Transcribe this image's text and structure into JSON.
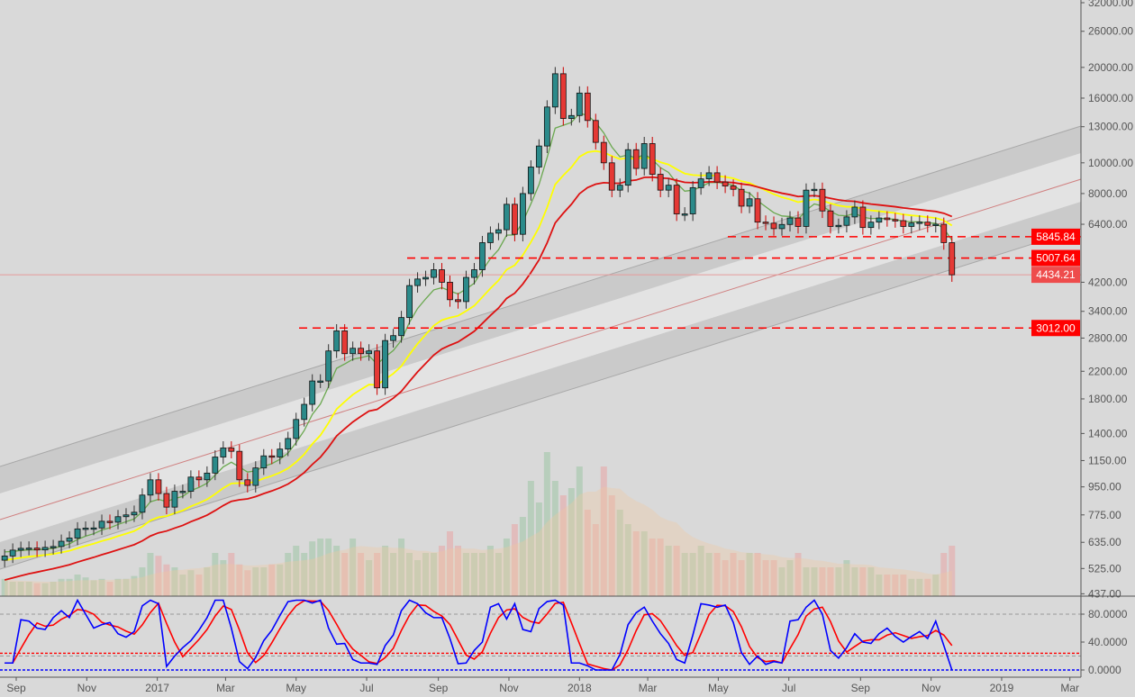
{
  "chart_data": {
    "type": "candlestick",
    "y_scale": "log",
    "ylim": [
      437,
      32000
    ],
    "price_ticks": [
      "32000.00",
      "26000.00",
      "20000.00",
      "16000.00",
      "13000.00",
      "10000.00",
      "8000.00",
      "6400.00",
      "4200.00",
      "3400.00",
      "2800.00",
      "2200.00",
      "1800.00",
      "1400.00",
      "1150.00",
      "950.00",
      "775.00",
      "635.00",
      "525.00",
      "437.00"
    ],
    "time_ticks": [
      {
        "label": "Sep",
        "date": "2016-09-01"
      },
      {
        "label": "Nov",
        "date": "2016-11-01"
      },
      {
        "label": "2017",
        "date": "2017-01-01"
      },
      {
        "label": "Mar",
        "date": "2017-03-01"
      },
      {
        "label": "May",
        "date": "2017-05-01"
      },
      {
        "label": "Jul",
        "date": "2017-07-01"
      },
      {
        "label": "Sep",
        "date": "2017-09-01"
      },
      {
        "label": "Nov",
        "date": "2017-11-01"
      },
      {
        "label": "2018",
        "date": "2018-01-01"
      },
      {
        "label": "Mar",
        "date": "2018-03-01"
      },
      {
        "label": "May",
        "date": "2018-05-01"
      },
      {
        "label": "Jul",
        "date": "2018-07-01"
      },
      {
        "label": "Sep",
        "date": "2018-09-01"
      },
      {
        "label": "Nov",
        "date": "2018-11-01"
      },
      {
        "label": "2019",
        "date": "2019-01-01"
      },
      {
        "label": "Mar",
        "date": "2019-03-01"
      }
    ],
    "first_candle_date": "2016-08-22",
    "candle_interval_days": 7,
    "close": [
      575,
      600,
      608,
      609,
      601,
      612,
      616,
      640,
      655,
      700,
      704,
      705,
      740,
      735,
      765,
      775,
      790,
      895,
      1000,
      905,
      820,
      920,
      920,
      1020,
      1000,
      1050,
      1180,
      1260,
      1230,
      1000,
      960,
      1090,
      1190,
      1180,
      1250,
      1350,
      1550,
      1730,
      2050,
      2050,
      2550,
      2950,
      2500,
      2600,
      2500,
      2550,
      1950,
      2750,
      2850,
      3250,
      4100,
      4300,
      4350,
      4600,
      4200,
      3700,
      3650,
      4350,
      4600,
      5600,
      6000,
      6150,
      7400,
      5950,
      8000,
      9700,
      11300,
      15000,
      19100,
      13800,
      14100,
      16600,
      13600,
      11600,
      10000,
      8200,
      8500,
      11000,
      9600,
      11500,
      9200,
      8200,
      8500,
      6900,
      6900,
      8350,
      8900,
      9300,
      8700,
      8450,
      8250,
      7300,
      7700,
      6500,
      6450,
      6200,
      6390,
      6700,
      6300,
      8200,
      8250,
      7050,
      6300,
      6350,
      6750,
      7250,
      6250,
      6500,
      6700,
      6620,
      6570,
      6300,
      6460,
      6500,
      6350,
      6400,
      5600,
      4434.21
    ],
    "volume_relative": [
      0.12,
      0.1,
      0.1,
      0.1,
      0.09,
      0.09,
      0.1,
      0.12,
      0.12,
      0.15,
      0.13,
      0.11,
      0.12,
      0.1,
      0.12,
      0.12,
      0.14,
      0.2,
      0.3,
      0.28,
      0.22,
      0.2,
      0.15,
      0.18,
      0.15,
      0.2,
      0.3,
      0.25,
      0.3,
      0.22,
      0.18,
      0.2,
      0.2,
      0.22,
      0.22,
      0.3,
      0.35,
      0.3,
      0.38,
      0.4,
      0.4,
      0.35,
      0.3,
      0.4,
      0.3,
      0.25,
      0.3,
      0.35,
      0.3,
      0.4,
      0.3,
      0.25,
      0.3,
      0.3,
      0.35,
      0.45,
      0.35,
      0.3,
      0.3,
      0.3,
      0.35,
      0.3,
      0.4,
      0.5,
      0.55,
      0.8,
      0.65,
      1.0,
      0.8,
      0.7,
      0.75,
      0.9,
      0.6,
      0.5,
      0.9,
      0.7,
      0.6,
      0.5,
      0.45,
      0.45,
      0.4,
      0.4,
      0.35,
      0.35,
      0.3,
      0.3,
      0.35,
      0.3,
      0.3,
      0.25,
      0.3,
      0.25,
      0.3,
      0.3,
      0.25,
      0.25,
      0.2,
      0.25,
      0.3,
      0.2,
      0.2,
      0.2,
      0.2,
      0.2,
      0.25,
      0.2,
      0.2,
      0.2,
      0.15,
      0.15,
      0.15,
      0.15,
      0.12,
      0.12,
      0.12,
      0.15,
      0.3,
      0.35
    ],
    "horizontal_levels": [
      {
        "label": "5845.84",
        "value": 5845.84,
        "style": "dashed"
      },
      {
        "label": "5007.64",
        "value": 5007.64,
        "style": "dashed"
      },
      {
        "label": "3012.00",
        "value": 3012.0,
        "style": "dashed"
      },
      {
        "label": "4434.21",
        "value": 4434.21,
        "style": "last-price"
      }
    ],
    "moving_averages": [
      {
        "color": "#6aa84f"
      },
      {
        "color": "#ffff00"
      },
      {
        "color": "#dd1111"
      }
    ],
    "oscillator": {
      "type": "stoch-rsi",
      "ticks": [
        "80.0000",
        "40.0000",
        "0.0000"
      ],
      "ylim": [
        0,
        100
      ],
      "levels": [
        80,
        20
      ],
      "k": [
        10,
        10,
        72,
        70,
        60,
        58,
        75,
        85,
        75,
        100,
        80,
        60,
        65,
        68,
        52,
        47,
        55,
        92,
        100,
        95,
        5,
        20,
        32,
        42,
        57,
        75,
        100,
        100,
        60,
        12,
        2,
        18,
        42,
        57,
        78,
        98,
        100,
        100,
        96,
        100,
        60,
        37,
        38,
        15,
        10,
        10,
        8,
        35,
        50,
        85,
        100,
        95,
        82,
        75,
        75,
        45,
        9,
        10,
        28,
        40,
        90,
        95,
        73,
        95,
        58,
        55,
        88,
        98,
        100,
        93,
        10,
        10,
        6,
        0,
        0,
        0,
        22,
        65,
        82,
        90,
        70,
        52,
        38,
        15,
        10,
        50,
        95,
        93,
        90,
        93,
        68,
        25,
        8,
        20,
        8,
        12,
        10,
        70,
        72,
        90,
        100,
        80,
        28,
        17,
        32,
        52,
        40,
        38,
        52,
        60,
        48,
        40,
        48,
        55,
        45,
        70,
        35,
        0
      ],
      "k_color": "#0000ff",
      "d_color": "#ff0000"
    },
    "colors": {
      "background": "#d9d9d9",
      "up_candle": "#2b8a8a",
      "down_candle": "#e53935",
      "channel_dark": "#cacaca",
      "channel_light": "#e3e3e3",
      "level_line": "#ff0000"
    }
  }
}
